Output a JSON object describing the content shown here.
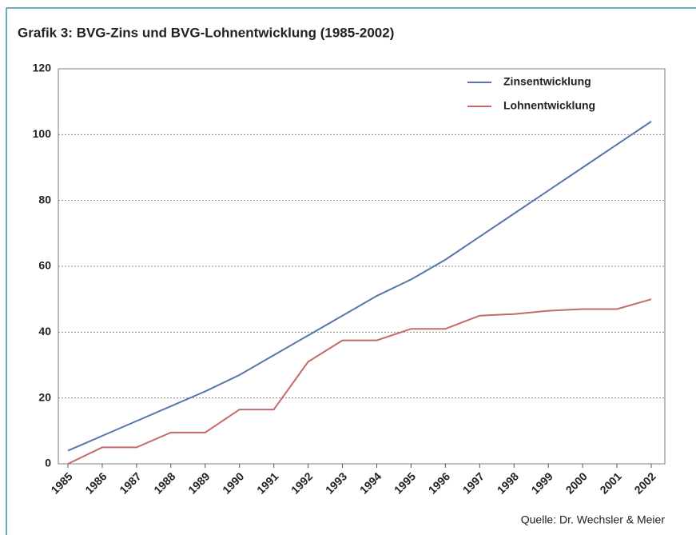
{
  "chart_data": {
    "type": "line",
    "title": "Grafik 3: BVG-Zins und BVG-Lohnentwicklung (1985-2002)",
    "source": "Quelle: Dr. Wechsler & Meier",
    "categories": [
      "1985",
      "1986",
      "1987",
      "1988",
      "1989",
      "1990",
      "1991",
      "1992",
      "1993",
      "1994",
      "1995",
      "1996",
      "1997",
      "1998",
      "1999",
      "2000",
      "2001",
      "2002"
    ],
    "series": [
      {
        "name": "Zinsentwicklung",
        "color": "#5577aa",
        "values": [
          4,
          8.5,
          13,
          17.5,
          22,
          27,
          33,
          39,
          45,
          51,
          56,
          62,
          69,
          76,
          83,
          90,
          97,
          104
        ]
      },
      {
        "name": "Lohnentwicklung",
        "color": "#c46a6a",
        "values": [
          0,
          5,
          5,
          9.5,
          9.5,
          16.5,
          16.5,
          31,
          37.5,
          37.5,
          41,
          41,
          45,
          45.5,
          46.5,
          47,
          47,
          50
        ]
      }
    ],
    "ylim": [
      0,
      120
    ],
    "yticks": [
      0,
      20,
      40,
      60,
      80,
      100,
      120
    ],
    "grid": true,
    "legend": "top-right"
  }
}
